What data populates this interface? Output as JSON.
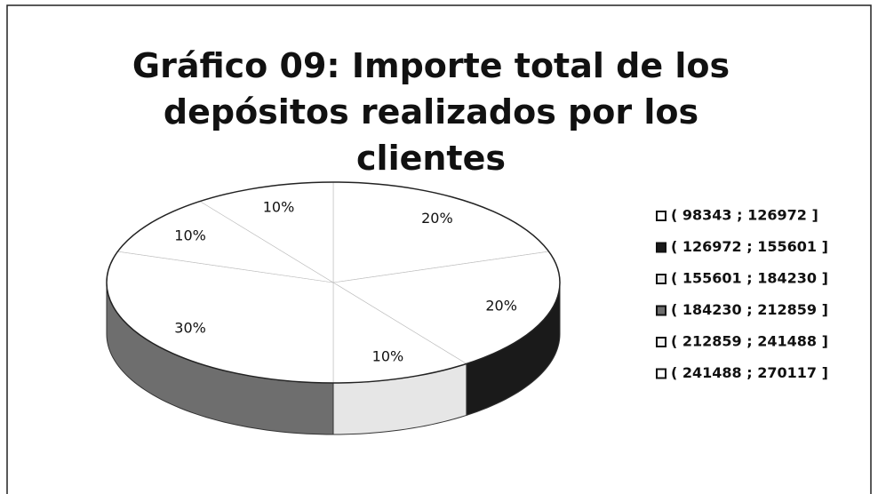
{
  "chart_data": {
    "type": "pie",
    "title": "Gráfico 09: Importe total de los depósitos realizados por los clientes",
    "categories": [
      "( 98343 ; 126972 ]",
      "( 126972 ; 155601 ]",
      "( 155601 ; 184230 ]",
      "( 184230 ; 212859 ]",
      "( 212859 ; 241488 ]",
      "( 241488 ; 270117 ]"
    ],
    "values": [
      20,
      20,
      10,
      30,
      10,
      10
    ],
    "value_labels": [
      "20%",
      "20%",
      "10%",
      "30%",
      "10%",
      "10%"
    ],
    "colors": [
      "#ffffff",
      "#1a1a1a",
      "#e6e6e6",
      "#6e6e6e",
      "#f2f2f2",
      "#ffffff"
    ],
    "legend": "right"
  }
}
